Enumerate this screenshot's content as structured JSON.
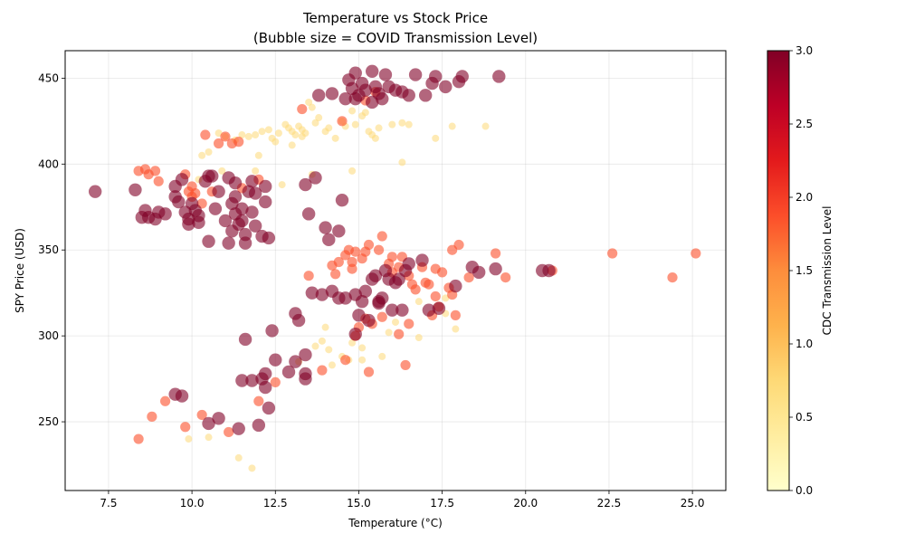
{
  "chart_data": {
    "type": "scatter",
    "title": "Temperature vs Stock Price",
    "subtitle": "(Bubble size = COVID Transmission Level)",
    "xlabel": "Temperature (°C)",
    "ylabel": "SPY Price (USD)",
    "xlim": [
      6.2,
      26.0
    ],
    "ylim": [
      210,
      466
    ],
    "xticks": [
      7.5,
      10.0,
      12.5,
      15.0,
      17.5,
      20.0,
      22.5,
      25.0
    ],
    "yticks": [
      250,
      300,
      350,
      400,
      450
    ],
    "grid": true,
    "colorbar": {
      "label": "CDC Transmission Level",
      "range": [
        0,
        3
      ],
      "ticks": [
        0.0,
        0.5,
        1.0,
        1.5,
        2.0,
        2.5,
        3.0
      ],
      "colormap": "YlOrRd",
      "colors": [
        "#ffffcc",
        "#ffeda0",
        "#fed976",
        "#feb24c",
        "#fd8d3c",
        "#fc4e2a",
        "#e31a1c",
        "#bd0026",
        "#800026"
      ]
    },
    "series": [
      {
        "level": 1,
        "color": "#fed976",
        "points": [
          [
            10.3,
            405
          ],
          [
            10.5,
            407
          ],
          [
            10.8,
            418
          ],
          [
            11.0,
            416
          ],
          [
            11.3,
            414
          ],
          [
            11.5,
            417
          ],
          [
            11.7,
            416
          ],
          [
            11.9,
            417
          ],
          [
            12.1,
            419
          ],
          [
            12.3,
            420
          ],
          [
            12.4,
            415
          ],
          [
            12.5,
            413
          ],
          [
            12.6,
            418
          ],
          [
            12.8,
            423
          ],
          [
            12.9,
            421
          ],
          [
            13.0,
            419
          ],
          [
            13.0,
            411
          ],
          [
            13.1,
            417
          ],
          [
            13.2,
            422
          ],
          [
            13.3,
            416
          ],
          [
            13.3,
            420
          ],
          [
            13.4,
            418
          ],
          [
            13.5,
            436
          ],
          [
            13.6,
            433
          ],
          [
            13.7,
            424
          ],
          [
            13.8,
            427
          ],
          [
            14.0,
            419
          ],
          [
            14.1,
            421
          ],
          [
            14.3,
            415
          ],
          [
            14.5,
            425
          ],
          [
            14.6,
            422
          ],
          [
            14.8,
            431
          ],
          [
            14.9,
            423
          ],
          [
            15.1,
            428
          ],
          [
            15.2,
            430
          ],
          [
            15.3,
            419
          ],
          [
            15.4,
            417
          ],
          [
            15.5,
            415
          ],
          [
            15.6,
            421
          ],
          [
            16.0,
            423
          ],
          [
            16.3,
            424
          ],
          [
            16.5,
            423
          ],
          [
            16.3,
            401
          ],
          [
            17.3,
            415
          ],
          [
            17.8,
            422
          ],
          [
            18.8,
            422
          ],
          [
            14.8,
            396
          ],
          [
            13.6,
            394
          ],
          [
            12.7,
            388
          ],
          [
            10.9,
            396
          ],
          [
            11.9,
            396
          ],
          [
            12.0,
            405
          ],
          [
            10.2,
            391
          ],
          [
            14.0,
            305
          ],
          [
            13.7,
            294
          ],
          [
            13.9,
            297
          ],
          [
            14.1,
            292
          ],
          [
            14.5,
            288
          ],
          [
            14.7,
            286
          ],
          [
            14.8,
            296
          ],
          [
            15.1,
            293
          ],
          [
            15.1,
            286
          ],
          [
            15.7,
            288
          ],
          [
            15.9,
            302
          ],
          [
            16.1,
            308
          ],
          [
            16.8,
            320
          ],
          [
            16.8,
            299
          ],
          [
            17.6,
            313
          ],
          [
            17.9,
            304
          ],
          [
            17.6,
            322
          ],
          [
            14.2,
            283
          ],
          [
            13.2,
            285
          ],
          [
            9.9,
            240
          ],
          [
            10.5,
            241
          ],
          [
            11.4,
            229
          ],
          [
            11.8,
            223
          ]
        ]
      },
      {
        "level": 2,
        "color": "#fc4e2a",
        "points": [
          [
            8.4,
            396
          ],
          [
            8.6,
            397
          ],
          [
            8.7,
            394
          ],
          [
            8.9,
            396
          ],
          [
            9.0,
            390
          ],
          [
            9.8,
            394
          ],
          [
            9.9,
            384
          ],
          [
            10.0,
            387
          ],
          [
            10.0,
            381
          ],
          [
            10.1,
            383
          ],
          [
            10.3,
            377
          ],
          [
            10.4,
            417
          ],
          [
            10.8,
            412
          ],
          [
            11.0,
            416
          ],
          [
            11.2,
            412
          ],
          [
            11.4,
            413
          ],
          [
            11.5,
            386
          ],
          [
            12.0,
            391
          ],
          [
            10.6,
            384
          ],
          [
            13.3,
            432
          ],
          [
            14.5,
            425
          ],
          [
            15.2,
            437
          ],
          [
            15.5,
            442
          ],
          [
            13.5,
            335
          ],
          [
            14.2,
            341
          ],
          [
            14.3,
            336
          ],
          [
            14.4,
            343
          ],
          [
            14.6,
            347
          ],
          [
            14.7,
            350
          ],
          [
            14.8,
            339
          ],
          [
            14.8,
            343
          ],
          [
            14.9,
            349
          ],
          [
            15.1,
            345
          ],
          [
            15.2,
            349
          ],
          [
            15.3,
            353
          ],
          [
            15.6,
            350
          ],
          [
            15.7,
            358
          ],
          [
            15.9,
            342
          ],
          [
            16.0,
            337
          ],
          [
            16.0,
            346
          ],
          [
            16.2,
            340
          ],
          [
            16.3,
            346
          ],
          [
            16.5,
            335
          ],
          [
            16.6,
            330
          ],
          [
            16.7,
            327
          ],
          [
            16.9,
            340
          ],
          [
            17.0,
            331
          ],
          [
            17.1,
            330
          ],
          [
            17.3,
            339
          ],
          [
            17.5,
            337
          ],
          [
            17.7,
            328
          ],
          [
            17.8,
            324
          ],
          [
            17.8,
            350
          ],
          [
            18.0,
            353
          ],
          [
            18.3,
            334
          ],
          [
            19.1,
            348
          ],
          [
            19.4,
            334
          ],
          [
            20.8,
            338
          ],
          [
            22.6,
            348
          ],
          [
            24.4,
            334
          ],
          [
            25.1,
            348
          ],
          [
            14.9,
            300
          ],
          [
            15.0,
            305
          ],
          [
            15.2,
            310
          ],
          [
            15.4,
            307
          ],
          [
            15.7,
            311
          ],
          [
            16.2,
            301
          ],
          [
            16.4,
            283
          ],
          [
            16.5,
            307
          ],
          [
            17.2,
            312
          ],
          [
            17.3,
            323
          ],
          [
            17.4,
            317
          ],
          [
            17.9,
            312
          ],
          [
            13.9,
            280
          ],
          [
            14.6,
            286
          ],
          [
            15.3,
            279
          ],
          [
            12.5,
            273
          ],
          [
            12.0,
            262
          ],
          [
            9.2,
            262
          ],
          [
            8.8,
            253
          ],
          [
            9.8,
            247
          ],
          [
            10.3,
            254
          ],
          [
            11.1,
            244
          ],
          [
            8.4,
            240
          ]
        ]
      },
      {
        "level": 3,
        "color": "#800026",
        "points": [
          [
            7.1,
            384
          ],
          [
            8.3,
            385
          ],
          [
            8.5,
            369
          ],
          [
            8.7,
            369
          ],
          [
            8.6,
            373
          ],
          [
            8.9,
            368
          ],
          [
            9.0,
            372
          ],
          [
            9.2,
            371
          ],
          [
            9.5,
            387
          ],
          [
            9.5,
            381
          ],
          [
            9.6,
            378
          ],
          [
            9.7,
            391
          ],
          [
            9.8,
            372
          ],
          [
            9.9,
            368
          ],
          [
            9.9,
            365
          ],
          [
            10.0,
            377
          ],
          [
            10.1,
            373
          ],
          [
            10.2,
            370
          ],
          [
            10.2,
            366
          ],
          [
            10.4,
            390
          ],
          [
            10.5,
            393
          ],
          [
            10.6,
            393
          ],
          [
            10.7,
            374
          ],
          [
            10.8,
            384
          ],
          [
            11.0,
            367
          ],
          [
            11.1,
            354
          ],
          [
            11.2,
            377
          ],
          [
            11.3,
            381
          ],
          [
            11.3,
            371
          ],
          [
            11.5,
            374
          ],
          [
            11.5,
            367
          ],
          [
            11.6,
            354
          ],
          [
            11.7,
            384
          ],
          [
            11.8,
            372
          ],
          [
            11.9,
            364
          ],
          [
            11.9,
            383
          ],
          [
            12.1,
            358
          ],
          [
            12.2,
            378
          ],
          [
            12.2,
            387
          ],
          [
            12.3,
            357
          ],
          [
            11.1,
            392
          ],
          [
            11.3,
            389
          ],
          [
            10.5,
            355
          ],
          [
            11.2,
            361
          ],
          [
            11.4,
            365
          ],
          [
            11.6,
            359
          ],
          [
            11.8,
            390
          ],
          [
            13.5,
            371
          ],
          [
            13.7,
            392
          ],
          [
            13.4,
            388
          ],
          [
            14.0,
            363
          ],
          [
            14.1,
            356
          ],
          [
            14.4,
            361
          ],
          [
            14.5,
            379
          ],
          [
            13.8,
            440
          ],
          [
            14.2,
            441
          ],
          [
            14.6,
            438
          ],
          [
            14.7,
            449
          ],
          [
            14.8,
            444
          ],
          [
            14.9,
            438
          ],
          [
            15.0,
            440
          ],
          [
            15.1,
            447
          ],
          [
            15.2,
            443
          ],
          [
            15.4,
            436
          ],
          [
            15.5,
            445
          ],
          [
            15.6,
            441
          ],
          [
            15.7,
            438
          ],
          [
            15.8,
            452
          ],
          [
            15.9,
            445
          ],
          [
            16.1,
            443
          ],
          [
            16.3,
            442
          ],
          [
            16.5,
            440
          ],
          [
            16.7,
            452
          ],
          [
            17.0,
            440
          ],
          [
            17.2,
            447
          ],
          [
            17.3,
            451
          ],
          [
            17.6,
            445
          ],
          [
            18.0,
            448
          ],
          [
            18.1,
            451
          ],
          [
            19.2,
            451
          ],
          [
            14.9,
            453
          ],
          [
            15.4,
            454
          ],
          [
            13.6,
            325
          ],
          [
            13.9,
            324
          ],
          [
            14.2,
            326
          ],
          [
            14.4,
            322
          ],
          [
            14.6,
            322
          ],
          [
            14.9,
            324
          ],
          [
            15.1,
            320
          ],
          [
            15.2,
            326
          ],
          [
            15.4,
            333
          ],
          [
            15.5,
            335
          ],
          [
            15.6,
            320
          ],
          [
            15.7,
            322
          ],
          [
            15.8,
            338
          ],
          [
            15.9,
            333
          ],
          [
            16.0,
            315
          ],
          [
            16.1,
            331
          ],
          [
            16.2,
            333
          ],
          [
            16.3,
            315
          ],
          [
            16.4,
            338
          ],
          [
            16.5,
            342
          ],
          [
            16.9,
            344
          ],
          [
            17.1,
            315
          ],
          [
            17.4,
            316
          ],
          [
            17.9,
            329
          ],
          [
            18.4,
            340
          ],
          [
            18.6,
            337
          ],
          [
            19.1,
            339
          ],
          [
            20.5,
            338
          ],
          [
            20.7,
            338
          ],
          [
            15.0,
            312
          ],
          [
            15.3,
            309
          ],
          [
            15.6,
            319
          ],
          [
            14.9,
            301
          ],
          [
            13.1,
            313
          ],
          [
            13.2,
            309
          ],
          [
            13.4,
            289
          ],
          [
            12.4,
            303
          ],
          [
            11.6,
            298
          ],
          [
            12.9,
            279
          ],
          [
            13.1,
            285
          ],
          [
            13.4,
            275
          ],
          [
            13.4,
            278
          ],
          [
            12.1,
            275
          ],
          [
            12.2,
            278
          ],
          [
            12.2,
            270
          ],
          [
            12.3,
            258
          ],
          [
            11.5,
            274
          ],
          [
            11.8,
            274
          ],
          [
            9.5,
            266
          ],
          [
            9.7,
            265
          ],
          [
            10.5,
            249
          ],
          [
            10.8,
            252
          ],
          [
            11.4,
            246
          ],
          [
            12.0,
            248
          ],
          [
            12.5,
            286
          ]
        ]
      }
    ]
  }
}
